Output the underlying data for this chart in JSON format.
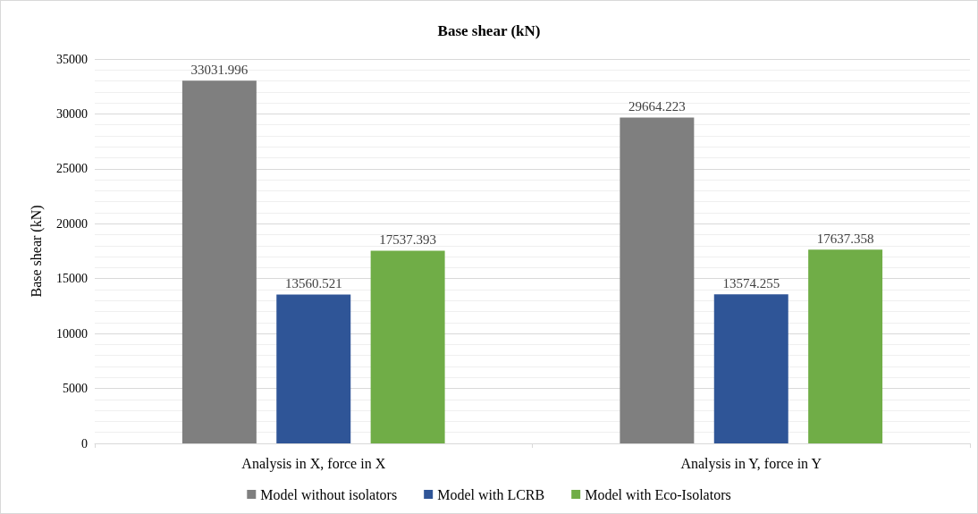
{
  "chart_data": {
    "type": "bar",
    "title": "Base shear (kN)",
    "ylabel": "Base shear (kN)",
    "categories": [
      "Analysis in X, force in X",
      "Analysis in Y, force in Y"
    ],
    "series": [
      {
        "name": "Model without isolators",
        "color": "#7f7f7f",
        "values": [
          33031.996,
          29664.223
        ]
      },
      {
        "name": "Model with LCRB",
        "color": "#2f5597",
        "values": [
          13560.521,
          13574.255
        ]
      },
      {
        "name": "Model with Eco-Isolators",
        "color": "#70ad47",
        "values": [
          17537.393,
          17637.358
        ]
      }
    ],
    "ylim": [
      0,
      35000
    ],
    "yticks": [
      0,
      5000,
      10000,
      15000,
      20000,
      25000,
      30000,
      35000
    ],
    "grid": "y",
    "legend": "bottom",
    "data_labels": true
  }
}
